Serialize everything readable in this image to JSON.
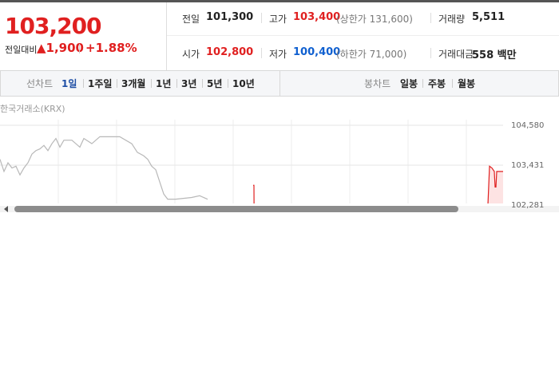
{
  "quote": {
    "price": "103,200",
    "change_label": "전일대비",
    "change": "1,900",
    "change_rate": "+1.88%"
  },
  "stats": [
    {
      "label": "전일",
      "value": "101,300",
      "color": "#222222"
    },
    {
      "label": "고가",
      "value": "103,400",
      "color": "#e02020",
      "note": "(상한가 131,600)"
    },
    {
      "label": "거래량",
      "value": "5,511",
      "color": "#222222"
    },
    {
      "label": "시가",
      "value": "102,800",
      "color": "#e02020"
    },
    {
      "label": "저가",
      "value": "100,400",
      "color": "#1060d0",
      "note": "(하한가 71,000)"
    },
    {
      "label": "거래대금",
      "value": "558 백만",
      "color": "#222222"
    }
  ],
  "tabs": {
    "line_label": "선차트",
    "line": [
      "1일",
      "1주일",
      "3개월",
      "1년",
      "3년",
      "5년",
      "10년"
    ],
    "selected": 0,
    "candle_label": "봉차트",
    "candle": [
      "일봉",
      "주봉",
      "월봉"
    ]
  },
  "chart_data": {
    "type": "line",
    "source": "한국거래소(KRX)",
    "xlim": [
      0,
      630
    ],
    "ylim": [
      102281,
      104580
    ],
    "yticks": [
      {
        "value": 104580,
        "label": "104,580"
      },
      {
        "value": 103431,
        "label": "103,431"
      },
      {
        "value": 102281,
        "label": "102,281"
      }
    ],
    "grid": true,
    "series": [
      {
        "color": "#b8b8b8",
        "x": [
          0,
          5,
          10,
          15,
          20,
          25,
          30,
          35,
          40,
          45,
          50,
          55,
          60,
          65,
          70,
          75,
          80,
          90,
          100,
          105,
          115,
          125,
          140,
          150,
          165,
          172,
          180,
          185,
          190,
          195,
          200,
          205,
          210,
          220,
          240,
          250,
          260
        ],
        "values": [
          103600,
          103250,
          103500,
          103350,
          103400,
          103150,
          103350,
          103500,
          103750,
          103850,
          103900,
          104000,
          103850,
          104050,
          104200,
          103950,
          104150,
          104150,
          103950,
          104200,
          104050,
          104250,
          104250,
          104250,
          104050,
          103800,
          103700,
          103600,
          103400,
          103300,
          102950,
          102600,
          102450,
          102450,
          102500,
          102550,
          102450
        ]
      },
      {
        "color": "#e02020",
        "x": [
          317,
          318,
          318.5,
          400,
          611,
          613,
          616,
          619,
          620,
          621,
          622,
          630
        ],
        "values": [
          102850,
          102850,
          100400,
          null,
          102300,
          103400,
          103350,
          103250,
          102800,
          102800,
          103250,
          103250
        ]
      }
    ]
  }
}
